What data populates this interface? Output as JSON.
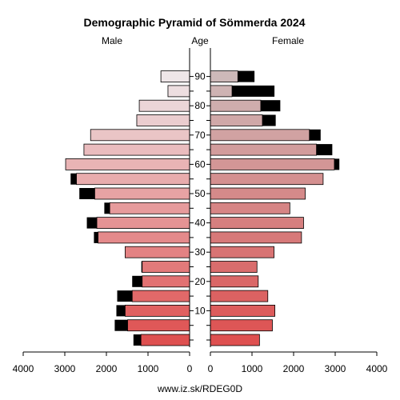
{
  "chart_data": {
    "type": "bar",
    "title": "Demographic Pyramid of Sömmerda 2024",
    "left_label": "Male",
    "center_label": "Age",
    "right_label": "Female",
    "source": "www.iz.sk/RDEG0D",
    "xlim": [
      0,
      4000
    ],
    "x_ticks": [
      4000,
      3000,
      2000,
      1000,
      0,
      1000,
      2000,
      3000,
      4000
    ],
    "age_ticks": [
      "10",
      "20",
      "30",
      "40",
      "50",
      "60",
      "70",
      "80",
      "90"
    ],
    "age_groups": [
      "0-4",
      "5-9",
      "10-14",
      "15-19",
      "20-24",
      "25-29",
      "30-34",
      "35-39",
      "40-44",
      "45-49",
      "50-54",
      "55-59",
      "60-64",
      "65-69",
      "70-74",
      "75-79",
      "80-84",
      "85-89",
      "90+"
    ],
    "series": [
      {
        "name": "Male",
        "values": [
          1170,
          1490,
          1550,
          1380,
          1140,
          1140,
          1550,
          2200,
          2230,
          1920,
          2280,
          2720,
          2980,
          2540,
          2380,
          1270,
          1210,
          520,
          690
        ]
      },
      {
        "name": "Male excess",
        "values": [
          180,
          310,
          210,
          360,
          240,
          20,
          0,
          100,
          240,
          130,
          370,
          140,
          0,
          0,
          0,
          0,
          0,
          0,
          0
        ]
      },
      {
        "name": "Female",
        "values": [
          1180,
          1490,
          1550,
          1380,
          1150,
          1120,
          1530,
          2190,
          2240,
          1910,
          2280,
          2710,
          2980,
          2550,
          2380,
          1250,
          1210,
          520,
          660
        ]
      },
      {
        "name": "Female excess",
        "values": [
          0,
          0,
          0,
          0,
          0,
          0,
          0,
          0,
          0,
          0,
          0,
          0,
          120,
          380,
          270,
          320,
          470,
          1020,
          400
        ]
      },
      {
        "name": "Female 90+ inner",
        "values": [
          0,
          0,
          0,
          0,
          0,
          0,
          0,
          0,
          0,
          0,
          0,
          0,
          0,
          0,
          0,
          0,
          0,
          0,
          170
        ]
      }
    ]
  }
}
